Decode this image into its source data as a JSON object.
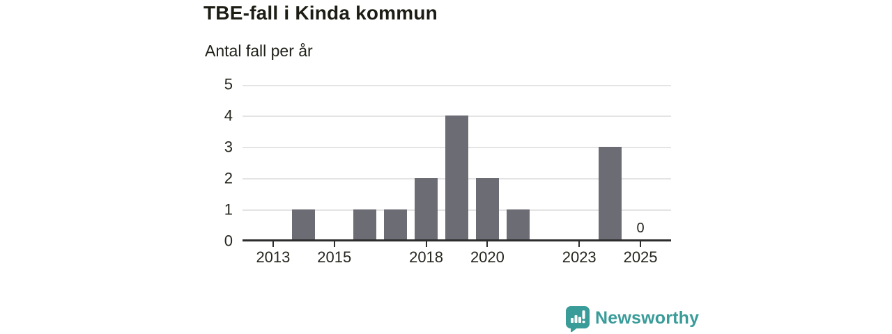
{
  "header": {
    "title": "TBE-fall i Kinda kommun",
    "subtitle": "Antal fall per år"
  },
  "chart_data": {
    "type": "bar",
    "title": "TBE-fall i Kinda kommun",
    "subtitle": "Antal fall per år",
    "ylabel": "Antal fall per år",
    "xlabel": "",
    "categories": [
      2013,
      2014,
      2015,
      2016,
      2017,
      2018,
      2019,
      2020,
      2021,
      2022,
      2023,
      2024,
      2025
    ],
    "values": [
      0,
      1,
      0,
      1,
      1,
      2,
      4,
      2,
      1,
      0,
      0,
      3,
      0
    ],
    "ylim": [
      0,
      5
    ],
    "yticks": [
      0,
      1,
      2,
      3,
      4,
      5
    ],
    "xtick_labels": [
      2013,
      2015,
      2018,
      2020,
      2023,
      2025
    ],
    "grid": "horizontal",
    "legend_position": "none",
    "bar_color": "#6c6c74",
    "gridline_color": "#e4e4e4",
    "axis_color": "#2c2c2c",
    "annotations": [
      {
        "category": 2025,
        "label": "0"
      }
    ]
  },
  "branding": {
    "name": "Newsworthy",
    "color": "#399c99",
    "icon": "newsworthy-speech-bubble-bar-chart"
  }
}
